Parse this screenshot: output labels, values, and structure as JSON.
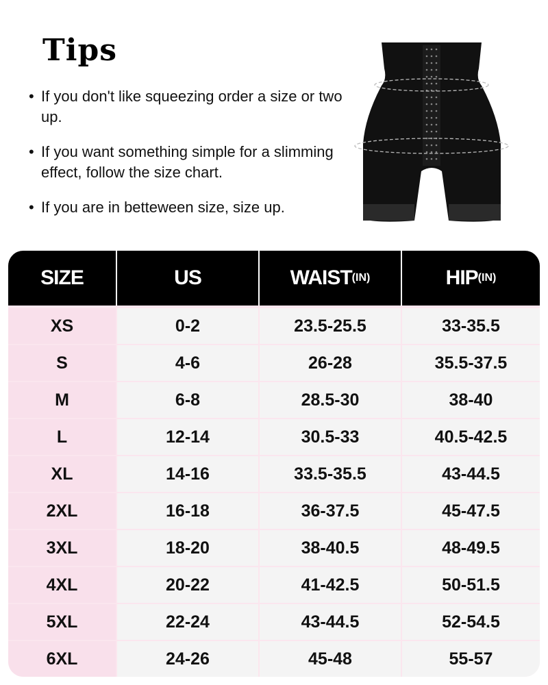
{
  "title": "Tips",
  "tips": [
    "If you don't like squeezing order a size or two up.",
    "If you want something simple for a slimming effect, follow the size chart.",
    "If you are in betteween size, size up."
  ],
  "colors": {
    "header_bg": "#000000",
    "size_column_bg": "#f9e0eb",
    "cell_bg": "#f4f4f4"
  },
  "product_image": "black high-waist lace-trim shaper shorts with hook-and-eye front, waist and hip measurement lines",
  "table": {
    "headers": [
      {
        "label": "SIZE",
        "unit": ""
      },
      {
        "label": "US",
        "unit": ""
      },
      {
        "label": "WAIST",
        "unit": "(IN)"
      },
      {
        "label": "HIP",
        "unit": "(IN)"
      }
    ],
    "rows": [
      [
        "XS",
        "0-2",
        "23.5-25.5",
        "33-35.5"
      ],
      [
        "S",
        "4-6",
        "26-28",
        "35.5-37.5"
      ],
      [
        "M",
        "6-8",
        "28.5-30",
        "38-40"
      ],
      [
        "L",
        "12-14",
        "30.5-33",
        "40.5-42.5"
      ],
      [
        "XL",
        "14-16",
        "33.5-35.5",
        "43-44.5"
      ],
      [
        "2XL",
        "16-18",
        "36-37.5",
        "45-47.5"
      ],
      [
        "3XL",
        "18-20",
        "38-40.5",
        "48-49.5"
      ],
      [
        "4XL",
        "20-22",
        "41-42.5",
        "50-51.5"
      ],
      [
        "5XL",
        "22-24",
        "43-44.5",
        "52-54.5"
      ],
      [
        "6XL",
        "24-26",
        "45-48",
        "55-57"
      ]
    ]
  }
}
